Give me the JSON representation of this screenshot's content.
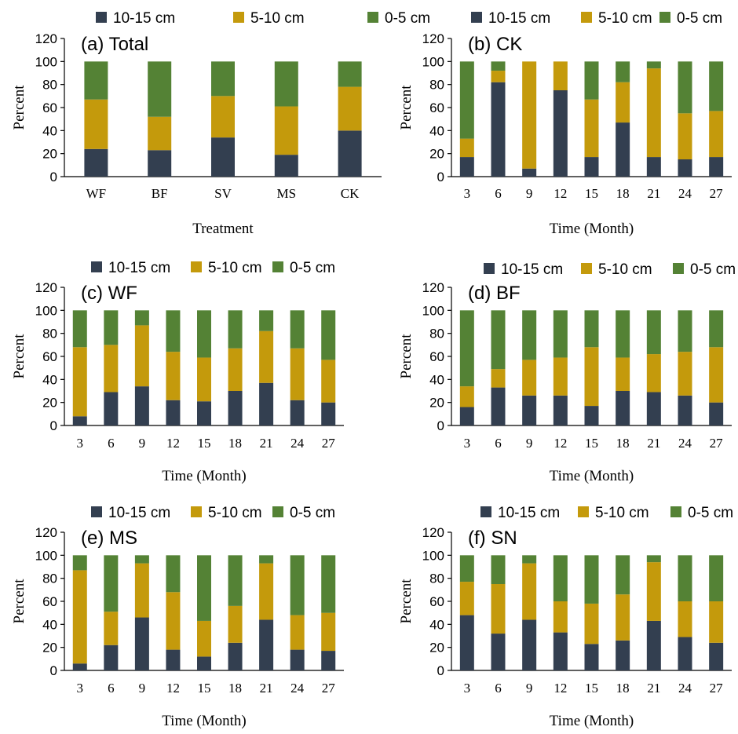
{
  "legend": [
    {
      "label": "10-15 cm",
      "color": "#333f50"
    },
    {
      "label": "5-10 cm",
      "color": "#c49a0c"
    },
    {
      "label": "0-5 cm",
      "color": "#548235"
    }
  ],
  "chart_data": [
    {
      "type": "bar",
      "stacked": true,
      "title": "(a) Total",
      "xlabel": "Treatment",
      "ylabel": "Percent",
      "ylim": [
        0,
        120
      ],
      "yticks": [
        0,
        20,
        40,
        60,
        80,
        100,
        120
      ],
      "legend_position": "top",
      "categories": [
        "WF",
        "BF",
        "SV",
        "MS",
        "CK"
      ],
      "series": [
        {
          "name": "10-15 cm",
          "values": [
            24,
            23,
            34,
            19,
            40
          ]
        },
        {
          "name": "5-10 cm",
          "values": [
            43,
            29,
            36,
            42,
            38
          ]
        },
        {
          "name": "0-5 cm",
          "values": [
            33,
            48,
            30,
            39,
            22
          ]
        }
      ]
    },
    {
      "type": "bar",
      "stacked": true,
      "title": "(b) CK",
      "xlabel": "Time (Month)",
      "ylabel": "Percent",
      "ylim": [
        0,
        120
      ],
      "yticks": [
        0,
        20,
        40,
        60,
        80,
        100,
        120
      ],
      "legend_position": "top",
      "categories": [
        "3",
        "6",
        "9",
        "12",
        "15",
        "18",
        "21",
        "24",
        "27"
      ],
      "series": [
        {
          "name": "10-15 cm",
          "values": [
            17,
            82,
            7,
            75,
            17,
            47,
            17,
            15,
            17
          ]
        },
        {
          "name": "5-10 cm",
          "values": [
            16,
            10,
            93,
            25,
            50,
            35,
            77,
            40,
            40
          ]
        },
        {
          "name": "0-5 cm",
          "values": [
            67,
            8,
            0,
            0,
            33,
            18,
            6,
            45,
            43
          ]
        }
      ]
    },
    {
      "type": "bar",
      "stacked": true,
      "title": "(c) WF",
      "xlabel": "Time (Month)",
      "ylabel": "Percent",
      "ylim": [
        0,
        120
      ],
      "yticks": [
        0,
        20,
        40,
        60,
        80,
        100,
        120
      ],
      "legend_position": "top",
      "categories": [
        "3",
        "6",
        "9",
        "12",
        "15",
        "18",
        "21",
        "24",
        "27"
      ],
      "series": [
        {
          "name": "10-15 cm",
          "values": [
            8,
            29,
            34,
            22,
            21,
            30,
            37,
            22,
            20
          ]
        },
        {
          "name": "5-10 cm",
          "values": [
            60,
            41,
            53,
            42,
            38,
            37,
            45,
            45,
            37
          ]
        },
        {
          "name": "0-5 cm",
          "values": [
            32,
            30,
            13,
            36,
            41,
            33,
            18,
            33,
            43
          ]
        }
      ]
    },
    {
      "type": "bar",
      "stacked": true,
      "title": "(d) BF",
      "xlabel": "Time (Month)",
      "ylabel": "Percent",
      "ylim": [
        0,
        120
      ],
      "yticks": [
        0,
        20,
        40,
        60,
        80,
        100,
        120
      ],
      "legend_position": "top",
      "categories": [
        "3",
        "6",
        "9",
        "12",
        "15",
        "18",
        "21",
        "24",
        "27"
      ],
      "series": [
        {
          "name": "10-15 cm",
          "values": [
            16,
            33,
            26,
            26,
            17,
            30,
            29,
            26,
            20
          ]
        },
        {
          "name": "5-10 cm",
          "values": [
            18,
            16,
            31,
            33,
            51,
            29,
            33,
            38,
            48
          ]
        },
        {
          "name": "0-5 cm",
          "values": [
            66,
            51,
            43,
            41,
            32,
            41,
            38,
            36,
            32
          ]
        }
      ]
    },
    {
      "type": "bar",
      "stacked": true,
      "title": "(e) MS",
      "xlabel": "Time (Month)",
      "ylabel": "Percent",
      "ylim": [
        0,
        120
      ],
      "yticks": [
        0,
        20,
        40,
        60,
        80,
        100,
        120
      ],
      "legend_position": "top",
      "categories": [
        "3",
        "6",
        "9",
        "12",
        "15",
        "18",
        "21",
        "24",
        "27"
      ],
      "series": [
        {
          "name": "10-15 cm",
          "values": [
            6,
            22,
            46,
            18,
            12,
            24,
            44,
            18,
            17
          ]
        },
        {
          "name": "5-10 cm",
          "values": [
            81,
            29,
            47,
            50,
            31,
            32,
            49,
            30,
            33
          ]
        },
        {
          "name": "0-5 cm",
          "values": [
            13,
            49,
            7,
            32,
            57,
            44,
            7,
            52,
            50
          ]
        }
      ]
    },
    {
      "type": "bar",
      "stacked": true,
      "title": "(f) SN",
      "xlabel": "Time (Month)",
      "ylabel": "Percent",
      "ylim": [
        0,
        120
      ],
      "yticks": [
        0,
        20,
        40,
        60,
        80,
        100,
        120
      ],
      "legend_position": "top",
      "categories": [
        "3",
        "6",
        "9",
        "12",
        "15",
        "18",
        "21",
        "24",
        "27"
      ],
      "series": [
        {
          "name": "10-15 cm",
          "values": [
            48,
            32,
            44,
            33,
            23,
            26,
            43,
            29,
            24
          ]
        },
        {
          "name": "5-10 cm",
          "values": [
            29,
            43,
            49,
            27,
            35,
            40,
            51,
            31,
            36
          ]
        },
        {
          "name": "0-5 cm",
          "values": [
            23,
            25,
            7,
            40,
            42,
            34,
            6,
            40,
            40
          ]
        }
      ]
    }
  ]
}
